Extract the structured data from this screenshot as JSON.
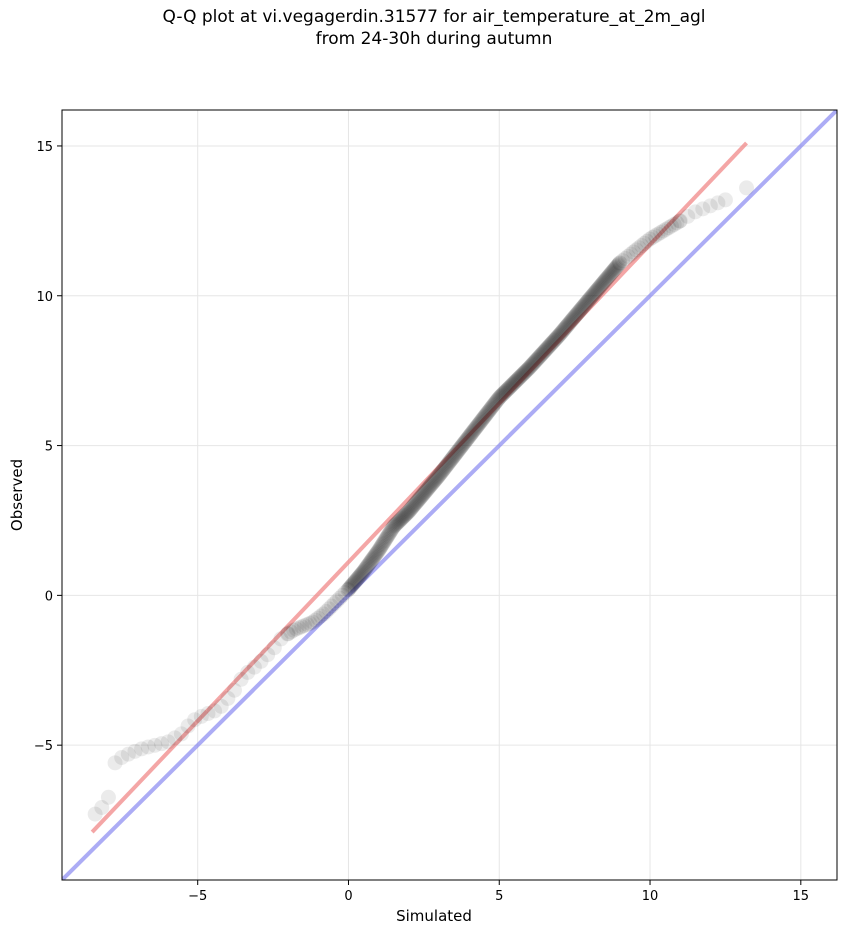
{
  "title_lines": [
    "Q-Q plot at vi.vegagerdin.31577 for air_temperature_at_2m_agl",
    "from 24-30h during autumn"
  ],
  "chart_data": {
    "type": "scatter",
    "xlabel": "Simulated",
    "ylabel": "Observed",
    "xlim": [
      -9.5,
      16.2
    ],
    "ylim": [
      -9.5,
      16.2
    ],
    "xticks": [
      -5,
      0,
      5,
      10,
      15
    ],
    "yticks": [
      -5,
      0,
      5,
      10,
      15
    ],
    "xtick_labels": [
      "−5",
      "0",
      "5",
      "10",
      "15"
    ],
    "ytick_labels": [
      "−5",
      "0",
      "5",
      "10",
      "15"
    ],
    "grid": true,
    "fit_line": {
      "x": [
        -8.5,
        13.2
      ],
      "y": [
        -7.9,
        15.1
      ],
      "color": "#f08080"
    },
    "identity_line": {
      "x": [
        -9.5,
        16.2
      ],
      "y": [
        -9.5,
        16.2
      ],
      "color": "#8080f0"
    },
    "points_color": "#000000",
    "points_y_anchors": [
      [
        -8.4,
        -7.3
      ],
      [
        -8.2,
        -7.1
      ],
      [
        -8.0,
        -6.9
      ],
      [
        -7.9,
        -6.5
      ],
      [
        -7.8,
        -6.0
      ],
      [
        -7.75,
        -5.6
      ],
      [
        -7.6,
        -5.45
      ],
      [
        -7.2,
        -5.25
      ],
      [
        -6.8,
        -5.1
      ],
      [
        -6.0,
        -4.9
      ],
      [
        -5.5,
        -4.6
      ],
      [
        -5.2,
        -4.2
      ],
      [
        -4.8,
        -4.0
      ],
      [
        -4.3,
        -3.8
      ],
      [
        -3.8,
        -3.2
      ],
      [
        -3.5,
        -2.7
      ],
      [
        -3.0,
        -2.3
      ],
      [
        -2.5,
        -1.8
      ],
      [
        -2.2,
        -1.4
      ],
      [
        -1.8,
        -1.15
      ],
      [
        -1.2,
        -0.9
      ],
      [
        -0.8,
        -0.6
      ],
      [
        -0.4,
        -0.2
      ],
      [
        0.0,
        0.2
      ],
      [
        0.5,
        0.8
      ],
      [
        1.0,
        1.5
      ],
      [
        1.5,
        2.3
      ],
      [
        2.0,
        2.8
      ],
      [
        3.0,
        4.0
      ],
      [
        4.0,
        5.3
      ],
      [
        5.0,
        6.6
      ],
      [
        6.0,
        7.6
      ],
      [
        7.0,
        8.7
      ],
      [
        8.0,
        9.9
      ],
      [
        9.0,
        11.1
      ],
      [
        10.0,
        11.9
      ],
      [
        11.0,
        12.5
      ],
      [
        11.5,
        12.8
      ],
      [
        12.0,
        13.0
      ],
      [
        12.5,
        13.2
      ],
      [
        13.2,
        13.6
      ]
    ]
  }
}
